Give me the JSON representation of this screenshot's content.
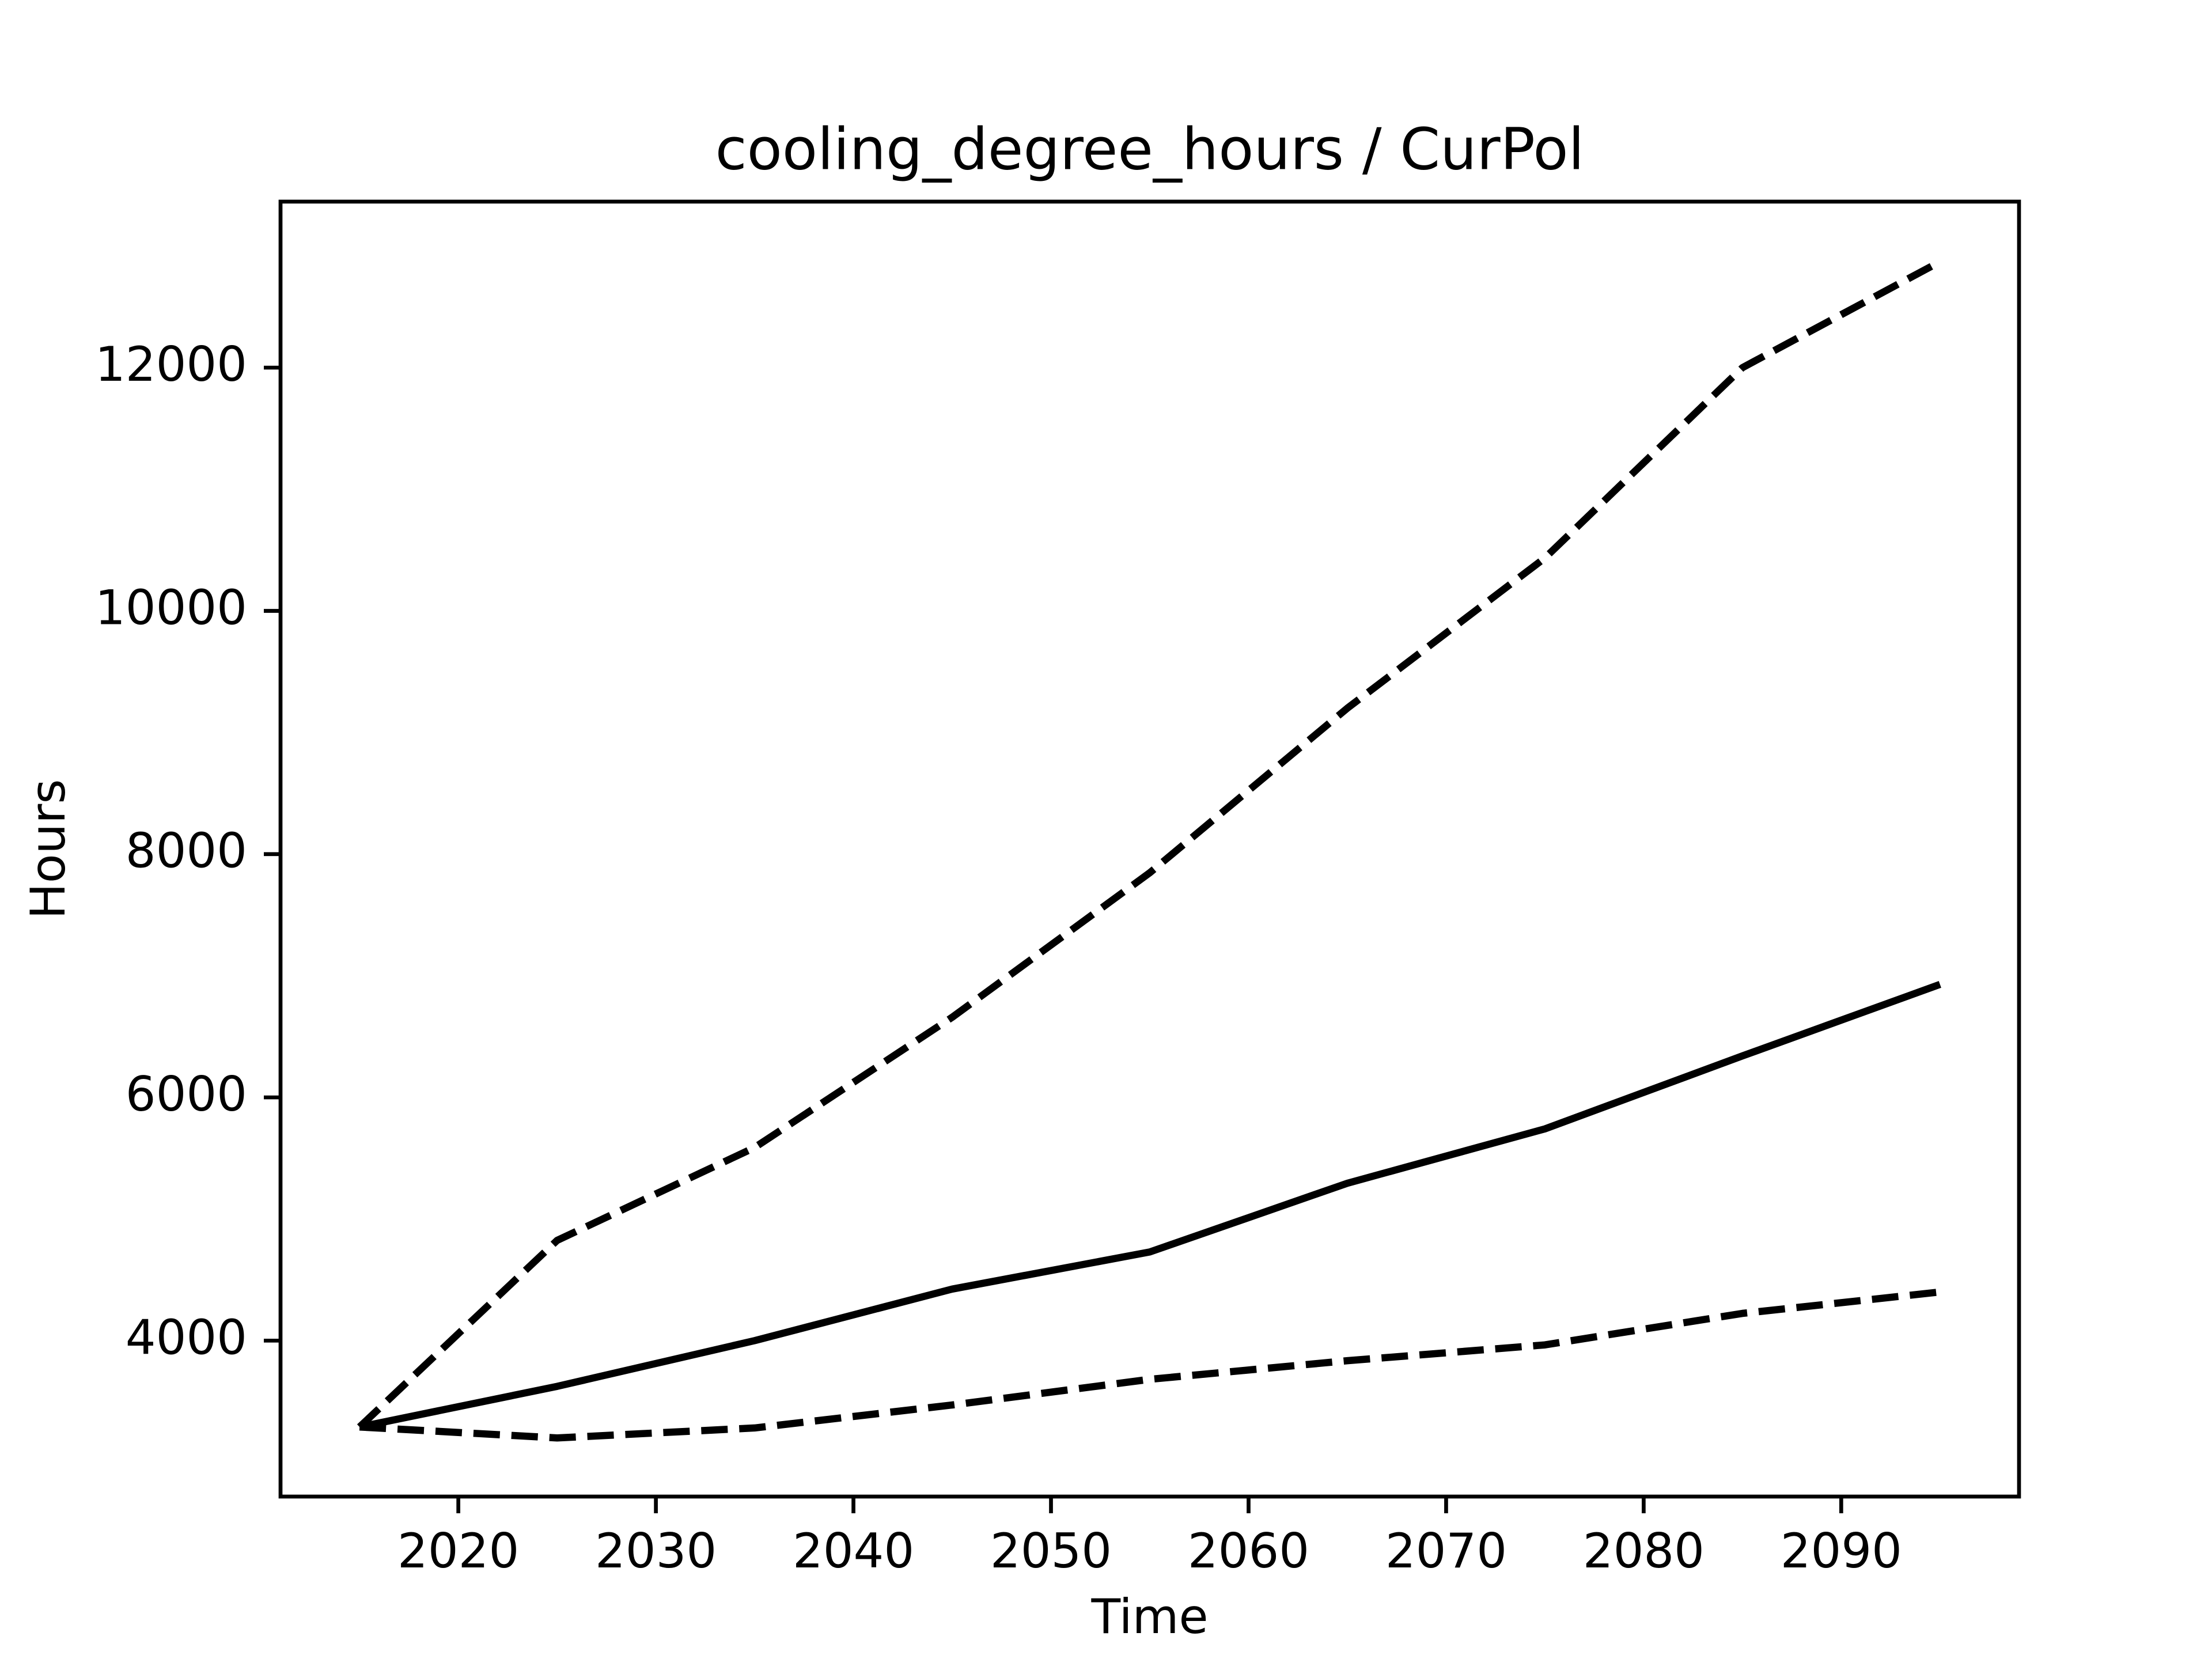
{
  "chart_data": {
    "type": "line",
    "title": "cooling_degree_hours / CurPol",
    "x_label": "Time",
    "y_label": "Hours",
    "x": [
      2015,
      2025,
      2035,
      2045,
      2055,
      2065,
      2075,
      2085,
      2095
    ],
    "series": [
      {
        "color": "#000000",
        "dashed": true,
        "values": [
          3290,
          4824,
          5588,
          6659,
          7847,
          9200,
          10435,
          12000,
          12871
        ]
      },
      {
        "color": "#000000",
        "dashed": false,
        "values": [
          3290,
          3624,
          4000,
          4424,
          4729,
          5294,
          5741,
          6341,
          6929
        ]
      },
      {
        "color": "#000000",
        "dashed": true,
        "values": [
          3290,
          3200,
          3282,
          3471,
          3682,
          3835,
          3965,
          4224,
          4400
        ]
      }
    ],
    "xlim": [
      2011,
      2099
    ],
    "xticks": [
      2020,
      2030,
      2040,
      2050,
      2060,
      2070,
      2080,
      2090
    ],
    "ylim": [
      2718,
      13365
    ],
    "yticks": [
      4000,
      6000,
      8000,
      10000,
      12000
    ],
    "grid": false
  }
}
